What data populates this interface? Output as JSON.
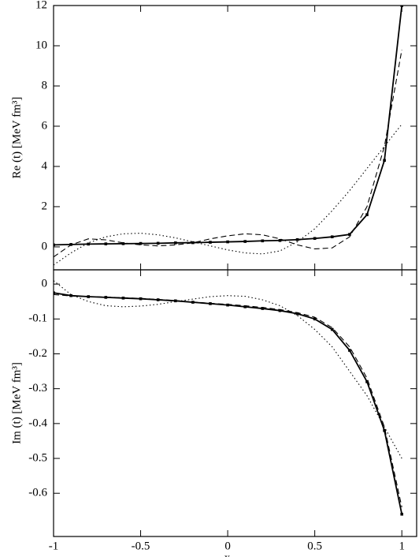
{
  "chart_data": [
    {
      "type": "line",
      "ylabel": "Re (t) [MeV fm³]",
      "x": [
        -1,
        -0.9,
        -0.8,
        -0.7,
        -0.6,
        -0.5,
        -0.4,
        -0.3,
        -0.2,
        -0.1,
        0,
        0.1,
        0.2,
        0.3,
        0.4,
        0.5,
        0.6,
        0.7,
        0.8,
        0.9,
        1
      ],
      "series": [
        {
          "color": "#000000",
          "dash": "solid",
          "marker": "square",
          "values": [
            0.1,
            0.12,
            0.14,
            0.15,
            0.16,
            0.17,
            0.18,
            0.2,
            0.21,
            0.23,
            0.25,
            0.27,
            0.3,
            0.32,
            0.36,
            0.42,
            0.5,
            0.62,
            1.6,
            4.3,
            12
          ]
        },
        {
          "color": "#000000",
          "dash": "dashed",
          "values": [
            -0.5,
            0.1,
            0.4,
            0.35,
            0.2,
            0.1,
            0.05,
            0.1,
            0.2,
            0.4,
            0.55,
            0.65,
            0.6,
            0.4,
            0.1,
            -0.1,
            -0.05,
            0.5,
            2.0,
            5.0,
            9.8
          ]
        },
        {
          "color": "#000000",
          "dash": "dotted",
          "values": [
            -0.9,
            -0.3,
            0.2,
            0.5,
            0.65,
            0.68,
            0.6,
            0.45,
            0.25,
            0.05,
            -0.15,
            -0.3,
            -0.35,
            -0.2,
            0.25,
            0.9,
            1.8,
            2.8,
            3.9,
            5.0,
            6.1
          ]
        }
      ],
      "xlim": [
        -1,
        1.085
      ],
      "ylim": [
        -1.14,
        12
      ],
      "yticks": [
        0,
        2,
        4,
        6,
        8,
        10,
        12
      ]
    },
    {
      "type": "line",
      "ylabel": "Im (t) [MeV fm³]",
      "xlabel": "x",
      "x": [
        -1,
        -0.9,
        -0.8,
        -0.7,
        -0.6,
        -0.5,
        -0.4,
        -0.3,
        -0.2,
        -0.1,
        0,
        0.1,
        0.2,
        0.3,
        0.4,
        0.5,
        0.6,
        0.7,
        0.8,
        0.9,
        1
      ],
      "series": [
        {
          "color": "#000000",
          "dash": "solid",
          "marker": "square",
          "values": [
            -0.025,
            -0.033,
            -0.036,
            -0.038,
            -0.04,
            -0.042,
            -0.045,
            -0.048,
            -0.052,
            -0.056,
            -0.06,
            -0.065,
            -0.07,
            -0.076,
            -0.085,
            -0.1,
            -0.13,
            -0.19,
            -0.28,
            -0.42,
            -0.66
          ]
        },
        {
          "color": "#000000",
          "dash": "dashed",
          "values": [
            -0.03,
            -0.034,
            -0.036,
            -0.037,
            -0.039,
            -0.041,
            -0.044,
            -0.047,
            -0.051,
            -0.055,
            -0.058,
            -0.062,
            -0.067,
            -0.073,
            -0.082,
            -0.095,
            -0.125,
            -0.18,
            -0.27,
            -0.41,
            -0.64
          ]
        },
        {
          "color": "#000000",
          "dash": "dotted",
          "values": [
            0.01,
            -0.03,
            -0.05,
            -0.062,
            -0.065,
            -0.063,
            -0.058,
            -0.05,
            -0.043,
            -0.036,
            -0.033,
            -0.035,
            -0.045,
            -0.062,
            -0.09,
            -0.13,
            -0.18,
            -0.25,
            -0.32,
            -0.41,
            -0.5
          ]
        }
      ],
      "xlim": [
        -1,
        1.085
      ],
      "ylim": [
        -0.724,
        0.041
      ],
      "xticks": [
        -1,
        -0.5,
        0,
        0.5,
        1
      ],
      "yticks": [
        0,
        -0.1,
        -0.2,
        -0.3,
        -0.4,
        -0.5,
        -0.6
      ]
    }
  ]
}
